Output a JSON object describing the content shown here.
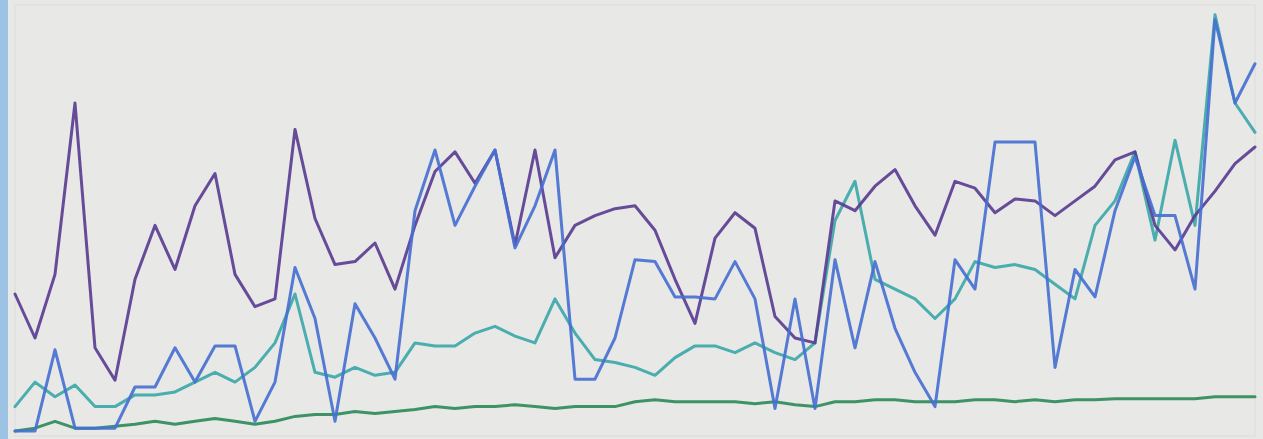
{
  "chart_data": {
    "type": "line",
    "x": [
      0,
      1,
      2,
      3,
      4,
      5,
      6,
      7,
      8,
      9,
      10,
      11,
      12,
      13,
      14,
      15,
      16,
      17,
      18,
      19,
      20,
      21,
      22,
      23,
      24,
      25,
      26,
      27,
      28,
      29,
      30,
      31,
      32,
      33,
      34,
      35,
      36,
      37,
      38,
      39,
      40,
      41,
      42,
      43,
      44,
      45,
      46,
      47,
      48,
      49,
      50,
      51,
      52,
      53,
      54,
      55,
      56,
      57,
      58,
      59,
      60,
      61,
      62
    ],
    "xlim": [
      0,
      62
    ],
    "ylim": [
      0,
      440
    ],
    "grid": false,
    "tick_labels": false,
    "series": [
      {
        "color": "#2e8b5a",
        "values": [
          5,
          8,
          15,
          8,
          8,
          10,
          12,
          15,
          12,
          15,
          18,
          15,
          12,
          15,
          20,
          22,
          22,
          25,
          23,
          25,
          27,
          30,
          28,
          30,
          30,
          32,
          30,
          28,
          30,
          30,
          30,
          35,
          37,
          35,
          35,
          35,
          35,
          33,
          35,
          32,
          30,
          35,
          35,
          37,
          37,
          35,
          35,
          35,
          37,
          37,
          35,
          37,
          35,
          37,
          37,
          38,
          38,
          38,
          38,
          38,
          40,
          40,
          40
        ]
      },
      {
        "color": "#3ca7a9",
        "values": [
          30,
          55,
          40,
          52,
          30,
          30,
          42,
          42,
          45,
          55,
          65,
          55,
          70,
          95,
          145,
          65,
          60,
          70,
          62,
          65,
          95,
          92,
          92,
          105,
          112,
          102,
          95,
          140,
          105,
          78,
          75,
          70,
          62,
          80,
          92,
          92,
          85,
          95,
          85,
          78,
          95,
          220,
          260,
          160,
          150,
          140,
          120,
          140,
          178,
          172,
          175,
          170,
          155,
          140,
          215,
          240,
          290,
          200,
          302,
          215,
          430,
          340,
          310
        ]
      },
      {
        "color": "#5a3d92",
        "values": [
          145,
          100,
          165,
          340,
          90,
          57,
          160,
          215,
          170,
          235,
          268,
          165,
          132,
          140,
          313,
          222,
          175,
          178,
          197,
          150,
          215,
          270,
          290,
          258,
          292,
          195,
          292,
          182,
          215,
          225,
          232,
          235,
          210,
          160,
          115,
          202,
          228,
          212,
          122,
          100,
          95,
          240,
          230,
          255,
          272,
          235,
          205,
          260,
          253,
          228,
          242,
          240,
          225,
          240,
          255,
          282,
          290,
          215,
          190,
          225,
          250,
          278,
          295
        ]
      },
      {
        "color": "#4670d2",
        "values": [
          5,
          5,
          88,
          8,
          8,
          8,
          50,
          50,
          90,
          55,
          92,
          92,
          15,
          55,
          172,
          120,
          15,
          135,
          100,
          58,
          230,
          292,
          215,
          255,
          292,
          192,
          235,
          292,
          58,
          58,
          100,
          180,
          178,
          142,
          142,
          140,
          178,
          140,
          28,
          140,
          28,
          180,
          90,
          178,
          110,
          65,
          30,
          180,
          150,
          300,
          300,
          300,
          70,
          170,
          142,
          230,
          285,
          225,
          225,
          150,
          425,
          340,
          380
        ]
      }
    ]
  }
}
